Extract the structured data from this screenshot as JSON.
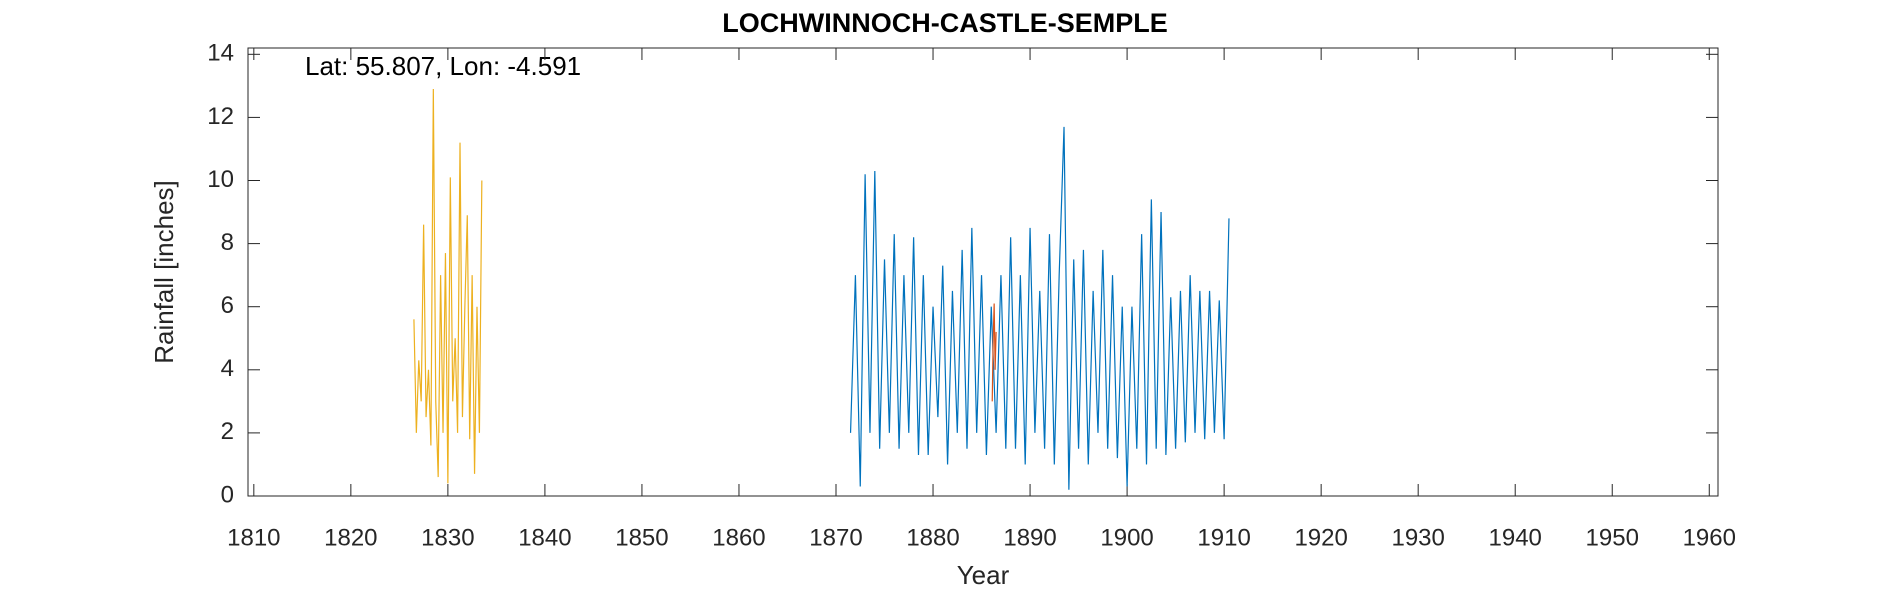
{
  "chart_data": {
    "type": "line",
    "title": "LOCHWINNOCH-CASTLE-SEMPLE",
    "annotation": "Lat: 55.807, Lon: -4.591",
    "x_label": "Year",
    "y_label": "Rainfall [inches]",
    "xlim": [
      1809.4,
      1960.9
    ],
    "xticks": [
      1810,
      1820,
      1830,
      1840,
      1850,
      1860,
      1870,
      1880,
      1890,
      1900,
      1910,
      1920,
      1930,
      1940,
      1950,
      1960
    ],
    "ylim": [
      0,
      14.2
    ],
    "yticks": [
      0,
      2,
      4,
      6,
      8,
      10,
      12,
      14
    ],
    "grid": false,
    "series": [
      {
        "color": "#edb120",
        "x": [
          1826.5,
          1826.75,
          1827,
          1827.25,
          1827.5,
          1827.75,
          1828,
          1828.25,
          1828.5,
          1828.75,
          1829,
          1829.25,
          1829.5,
          1829.75,
          1830,
          1830.25,
          1830.5,
          1830.75,
          1831,
          1831.25,
          1831.5,
          1831.75,
          1832,
          1832.25,
          1832.5,
          1832.75,
          1833,
          1833.25,
          1833.5
        ],
        "values": [
          5.6,
          2,
          4.3,
          3,
          8.6,
          2.5,
          4,
          1.6,
          12.9,
          3,
          0.6,
          7,
          2,
          7.7,
          0.4,
          10.1,
          3,
          5,
          2,
          11.2,
          2.5,
          6,
          8.9,
          1.8,
          7,
          0.7,
          6,
          2,
          10
        ]
      },
      {
        "color": "#0072bd",
        "x": [
          1871.5,
          1872,
          1872.5,
          1873,
          1873.5,
          1874,
          1874.5,
          1875,
          1875.5,
          1876,
          1876.5,
          1877,
          1877.5,
          1878,
          1878.5,
          1879,
          1879.5,
          1880,
          1880.5,
          1881,
          1881.5,
          1882,
          1882.5,
          1883,
          1883.5,
          1884,
          1884.5,
          1885,
          1885.5,
          1886,
          1886.5,
          1887,
          1887.5,
          1888,
          1888.5,
          1889,
          1889.5,
          1890,
          1890.5,
          1891,
          1891.5,
          1892,
          1892.5,
          1893,
          1893.5,
          1894,
          1894.5,
          1895,
          1895.5,
          1896,
          1896.5,
          1897,
          1897.5,
          1898,
          1898.5,
          1899,
          1899.5,
          1900,
          1900.5,
          1901,
          1901.5,
          1902,
          1902.5,
          1903,
          1903.5,
          1904,
          1904.5,
          1905,
          1905.5,
          1906,
          1906.5,
          1907,
          1907.5,
          1908,
          1908.5,
          1909,
          1909.5,
          1910,
          1910.5
        ],
        "values": [
          2,
          7,
          0.3,
          10.2,
          2,
          10.3,
          1.5,
          7.5,
          2,
          8.3,
          1.5,
          7,
          2,
          8.2,
          1.3,
          7,
          1.3,
          6,
          2.5,
          7.3,
          1,
          6.5,
          2,
          7.8,
          1.5,
          8.5,
          2,
          7,
          1.3,
          6,
          2,
          7,
          1.5,
          8.2,
          1.5,
          7,
          1,
          8.5,
          2,
          6.5,
          1.5,
          8.3,
          1,
          7,
          11.7,
          0.2,
          7.5,
          1.5,
          7.8,
          1,
          6.5,
          2,
          7.8,
          1.5,
          7,
          1.2,
          6,
          0.3,
          6,
          1.5,
          8.3,
          1,
          9.4,
          1.5,
          9,
          1.3,
          6.3,
          1.5,
          6.5,
          1.7,
          7,
          2,
          6.5,
          1.8,
          6.5,
          2,
          6.2,
          1.8,
          8.8
        ]
      },
      {
        "color": "#d95319",
        "x": [
          1886.1,
          1886.2,
          1886.3,
          1886.4,
          1886.5
        ],
        "values": [
          3,
          5,
          6.1,
          4,
          5.2
        ]
      }
    ]
  }
}
